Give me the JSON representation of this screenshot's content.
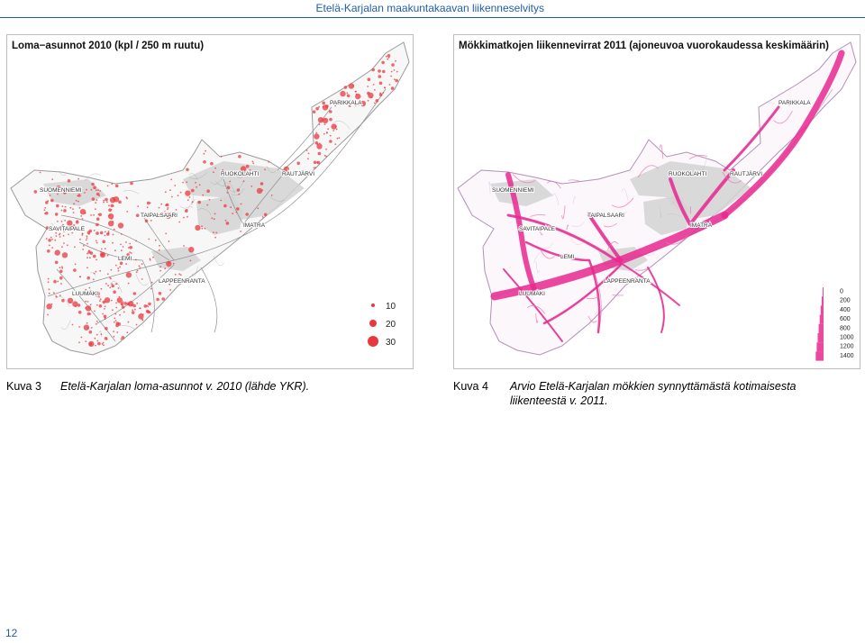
{
  "header": {
    "title": "Etelä-Karjalan maakuntakaavan liikenneselvitys"
  },
  "figure_left": {
    "title": "Loma−asunnot 2010 (kpl / 250 m ruutu)",
    "places": [
      "PARIKKALA",
      "RUOKOLAHTI",
      "RAUTJÄRVI",
      "SUOMENNIEMI",
      "TAIPALSAARI",
      "IMATRA",
      "SAVITAIPALE",
      "LEMI",
      "LAPPEENRANTA",
      "LUUMÄKI"
    ],
    "legend": [
      {
        "label": "10"
      },
      {
        "label": "20"
      },
      {
        "label": "30"
      }
    ],
    "colors": {
      "dots": "#e8383d",
      "urban": "#c9c9c9",
      "roads": "#8a8a8a"
    }
  },
  "figure_right": {
    "title": "Mökkimatkojen liikennevirrat 2011 (ajoneuvoa vuorokaudessa keskimäärin)",
    "places": [
      "PARIKKALA",
      "RUOKOLAHTI",
      "RAUTJÄRVI",
      "SUOMENNIEMI",
      "TAIPALSAARI",
      "IMATRA",
      "SAVITAIPALE",
      "LEMI",
      "LAPPEENRANTA",
      "LUUMÄKI"
    ],
    "legend": [
      "0",
      "200",
      "400",
      "600",
      "800",
      "1000",
      "1200",
      "1400"
    ],
    "colors": {
      "flow": "#e8288f",
      "urban": "#c9c9c9",
      "roads": "#b9a8c8"
    }
  },
  "captions": [
    {
      "num": "Kuva 3",
      "text": "Etelä-Karjalan loma-asunnot v. 2010 (lähde YKR)."
    },
    {
      "num": "Kuva 4",
      "text": "Arvio Etelä-Karjalan mökkien synnyttämästä kotimaisesta liikenteestä v. 2011."
    }
  ],
  "page_number": "12"
}
